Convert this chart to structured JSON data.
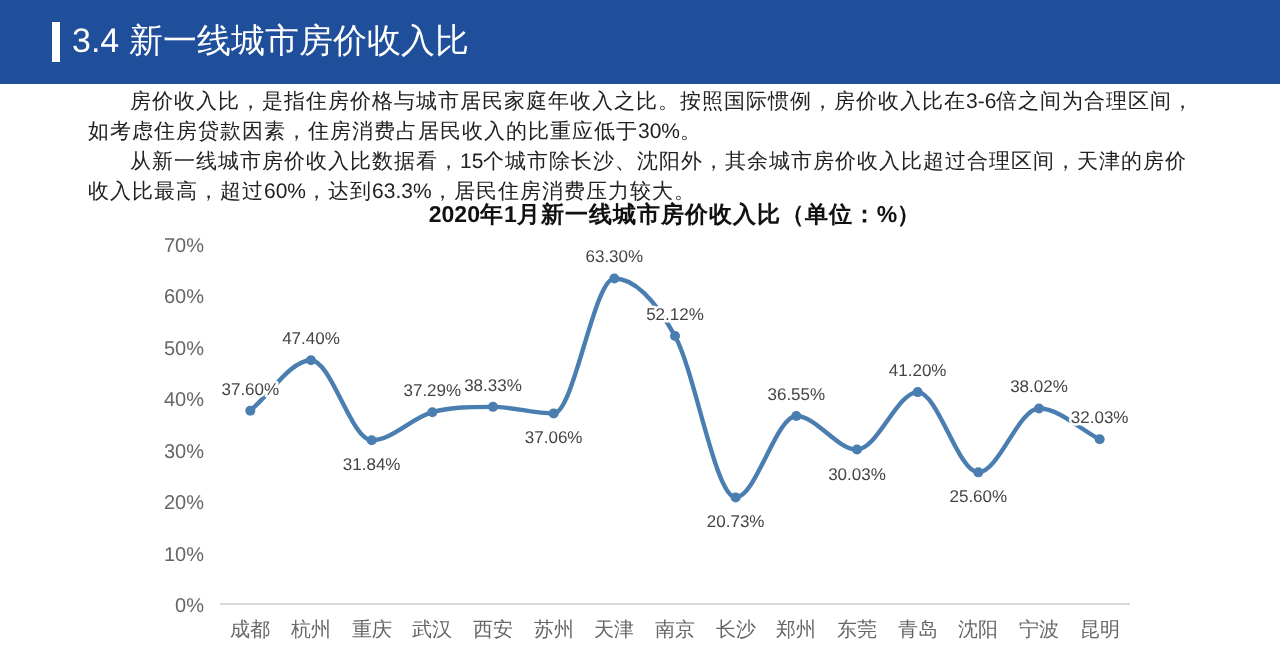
{
  "chart_data": {
    "type": "line",
    "title": "2020年1月新一线城市房价收入比（单位：%）",
    "annotations": [
      "3.4 新一线城市房价收入比",
      "房价收入比，是指住房价格与城市居民家庭年收入之比。按照国际惯例，房价收入比在3-6倍之间为合理区间，如考虑住房贷款因素，住房消费占居民收入的比重应低于30%。",
      "从新一线城市房价收入比数据看，15个城市除长沙、沈阳外，其余城市房价收入比超过合理区间，天津的房价收入比最高，超过60%，达到63.3%，居民住房消费压力较大。"
    ],
    "categories": [
      "成都",
      "杭州",
      "重庆",
      "武汉",
      "西安",
      "苏州",
      "天津",
      "南京",
      "长沙",
      "郑州",
      "东莞",
      "青岛",
      "沈阳",
      "宁波",
      "昆明"
    ],
    "series": [
      {
        "color": "#4a7eb0",
        "values": [
          37.6,
          47.4,
          31.84,
          37.29,
          38.33,
          37.06,
          63.3,
          52.12,
          20.73,
          36.55,
          30.03,
          41.2,
          25.6,
          38.02,
          32.03
        ],
        "value_labels": [
          "37.60%",
          "47.40%",
          "31.84%",
          "37.29%",
          "38.33%",
          "37.06%",
          "63.30%",
          "52.12%",
          "20.73%",
          "36.55%",
          "30.03%",
          "41.20%",
          "25.60%",
          "38.02%",
          "32.03%"
        ]
      }
    ],
    "ylim": [
      0,
      70
    ],
    "yticks": [
      {
        "value": 0,
        "label": "0%"
      },
      {
        "value": 10,
        "label": "10%"
      },
      {
        "value": 20,
        "label": "20%"
      },
      {
        "value": 30,
        "label": "30%"
      },
      {
        "value": 40,
        "label": "40%"
      },
      {
        "value": 50,
        "label": "50%"
      },
      {
        "value": 60,
        "label": "60%"
      },
      {
        "value": 70,
        "label": "70%"
      }
    ],
    "marker": "circle",
    "line_style": "solid",
    "grid": false
  }
}
